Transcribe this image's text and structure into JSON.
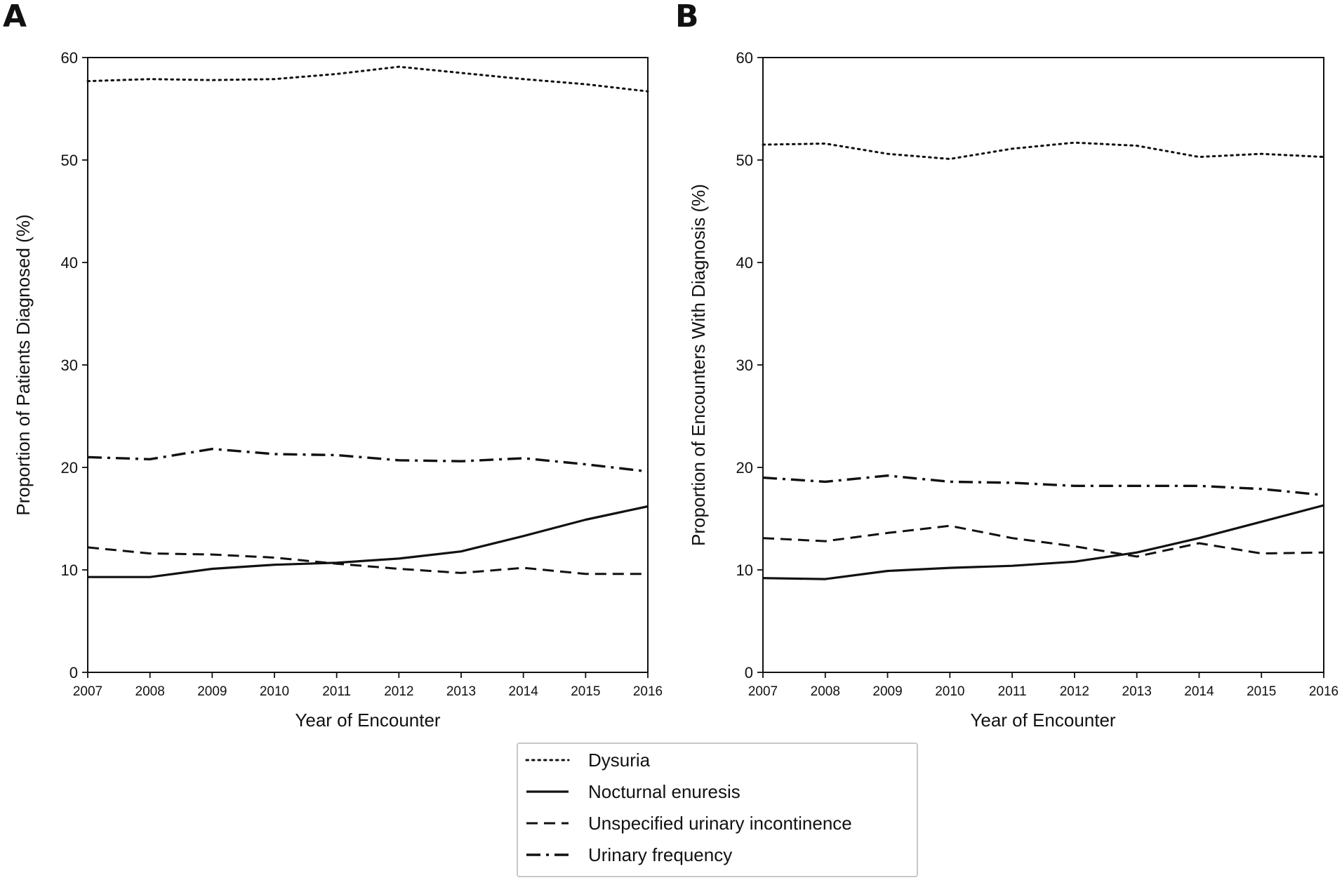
{
  "chart_data": [
    {
      "type": "line",
      "panel_label": "A",
      "xlabel": "Year of Encounter",
      "ylabel": "Proportion of Patients Diagnosed (%)",
      "x": [
        2007,
        2008,
        2009,
        2010,
        2011,
        2012,
        2013,
        2014,
        2015,
        2016
      ],
      "xticks": [
        "2007",
        "2008",
        "2009",
        "2010",
        "2011",
        "2012",
        "2013",
        "2014",
        "2015",
        "2016"
      ],
      "yticks": [
        "0",
        "10",
        "20",
        "30",
        "40",
        "50",
        "60"
      ],
      "xlim": [
        2007,
        2016
      ],
      "ylim": [
        0,
        60
      ],
      "series": [
        {
          "name": "Dysuria",
          "style": "dotted",
          "values": [
            57.7,
            57.9,
            57.8,
            57.9,
            58.4,
            59.1,
            58.5,
            57.9,
            57.4,
            56.7
          ]
        },
        {
          "name": "Nocturnal enuresis",
          "style": "solid",
          "values": [
            9.3,
            9.3,
            10.1,
            10.5,
            10.7,
            11.1,
            11.8,
            13.3,
            14.9,
            16.2
          ]
        },
        {
          "name": "Unspecified urinary incontinence",
          "style": "dashed",
          "values": [
            12.2,
            11.6,
            11.5,
            11.2,
            10.6,
            10.1,
            9.7,
            10.2,
            9.6,
            9.6
          ]
        },
        {
          "name": "Urinary frequency",
          "style": "dashdot",
          "values": [
            21.0,
            20.8,
            21.8,
            21.3,
            21.2,
            20.7,
            20.6,
            20.9,
            20.3,
            19.6
          ]
        }
      ]
    },
    {
      "type": "line",
      "panel_label": "B",
      "xlabel": "Year of Encounter",
      "ylabel": "Proportion of Encounters With Diagnosis (%)",
      "x": [
        2007,
        2008,
        2009,
        2010,
        2011,
        2012,
        2013,
        2014,
        2015,
        2016
      ],
      "xticks": [
        "2007",
        "2008",
        "2009",
        "2010",
        "2011",
        "2012",
        "2013",
        "2014",
        "2015",
        "2016"
      ],
      "yticks": [
        "0",
        "10",
        "20",
        "30",
        "40",
        "50",
        "60"
      ],
      "xlim": [
        2007,
        2016
      ],
      "ylim": [
        0,
        60
      ],
      "series": [
        {
          "name": "Dysuria",
          "style": "dotted",
          "values": [
            51.5,
            51.6,
            50.6,
            50.1,
            51.1,
            51.7,
            51.4,
            50.3,
            50.6,
            50.3
          ]
        },
        {
          "name": "Nocturnal enuresis",
          "style": "solid",
          "values": [
            9.2,
            9.1,
            9.9,
            10.2,
            10.4,
            10.8,
            11.7,
            13.1,
            14.7,
            16.3
          ]
        },
        {
          "name": "Unspecified urinary incontinence",
          "style": "dashed",
          "values": [
            13.1,
            12.8,
            13.6,
            14.3,
            13.1,
            12.3,
            11.3,
            12.6,
            11.6,
            11.7
          ]
        },
        {
          "name": "Urinary frequency",
          "style": "dashdot",
          "values": [
            19.0,
            18.6,
            19.2,
            18.6,
            18.5,
            18.2,
            18.2,
            18.2,
            17.9,
            17.3
          ]
        }
      ]
    }
  ],
  "legend": {
    "items": [
      {
        "label": "Dysuria",
        "style": "dotted"
      },
      {
        "label": "Nocturnal enuresis",
        "style": "solid"
      },
      {
        "label": "Unspecified urinary incontinence",
        "style": "dashed"
      },
      {
        "label": "Urinary frequency",
        "style": "dashdot"
      }
    ]
  },
  "colors": {
    "line": "#111111",
    "background": "#ffffff",
    "legend_border": "#c8c8c8"
  }
}
